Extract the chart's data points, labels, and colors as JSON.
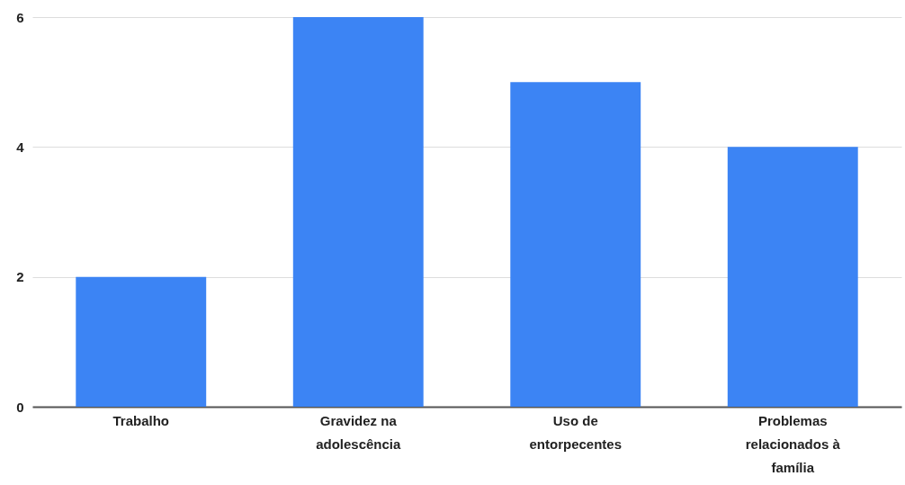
{
  "chart_data": {
    "type": "bar",
    "categories": [
      "Trabalho",
      "Gravidez na adolescência",
      "Uso de entorpecentes",
      "Problemas relacionados à família"
    ],
    "values": [
      2,
      6,
      5,
      4
    ],
    "color": "#3c84f4",
    "ylim": [
      0,
      6
    ],
    "yticks": [
      0,
      2,
      4,
      6
    ],
    "grid": "y"
  }
}
